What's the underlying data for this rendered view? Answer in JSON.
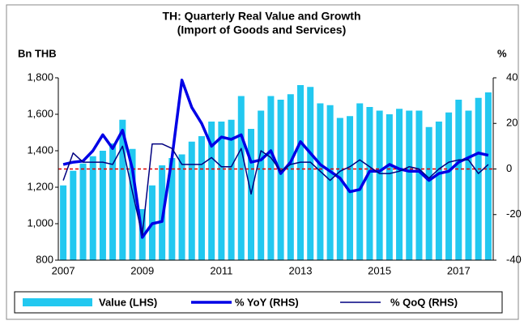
{
  "chart_data": {
    "type": "bar-line",
    "title": "TH: Quarterly Real Value and Growth",
    "subtitle": "(Import of Goods and Services)",
    "y_label": "Bn THB",
    "y2_label": "%",
    "categories": [
      "2007",
      null,
      null,
      null,
      null,
      null,
      null,
      null,
      "2009",
      null,
      null,
      null,
      null,
      null,
      null,
      null,
      "2011",
      null,
      null,
      null,
      null,
      null,
      null,
      null,
      "2013",
      null,
      null,
      null,
      null,
      null,
      null,
      null,
      "2015",
      null,
      null,
      null,
      null,
      null,
      null,
      null,
      "2017",
      null,
      null,
      null
    ],
    "ylim": [
      800,
      1800
    ],
    "yticks": [
      800,
      {
        "value": 1000,
        "label": "1,000"
      },
      {
        "value": 1200,
        "label": "1,200"
      },
      {
        "value": 1400,
        "label": "1,400"
      },
      {
        "value": 1600,
        "label": "1,600"
      },
      {
        "value": 1800,
        "label": "1,800"
      }
    ],
    "y2lim": [
      -40,
      40
    ],
    "y2ticks": [
      -40,
      -20,
      0,
      20,
      40
    ],
    "zero_line": {
      "value": 0,
      "color": "#e00000",
      "axis": "y2"
    },
    "legend": "bottom",
    "series": [
      {
        "name": "Value (LHS)",
        "kind": "bar",
        "color": "#22c8f0",
        "values": [
          1210,
          1290,
          1330,
          1370,
          1400,
          1440,
          1570,
          1410,
          1080,
          1210,
          1320,
          1360,
          1380,
          1450,
          1480,
          1560,
          1560,
          1570,
          1700,
          1520,
          1620,
          1700,
          1680,
          1710,
          1760,
          1750,
          1660,
          1650,
          1580,
          1590,
          1660,
          1640,
          1620,
          1600,
          1630,
          1620,
          1620,
          1530,
          1560,
          1610,
          1680,
          1620,
          1690,
          1720
        ]
      },
      {
        "name": "% YoY (RHS)",
        "kind": "line",
        "axis": "y2",
        "color": "#0000e6",
        "width": 3.5,
        "values": [
          2,
          3,
          3.5,
          8,
          15,
          9,
          17,
          0,
          -30,
          -24,
          -23,
          5,
          39,
          27,
          20,
          10,
          14,
          13,
          15,
          3,
          4,
          8,
          -2,
          3,
          12,
          7,
          2,
          -1,
          -4,
          -10,
          -9,
          -1,
          -1,
          2,
          0,
          -1,
          -1,
          -5,
          -2,
          -1,
          3,
          5,
          7,
          6
        ]
      },
      {
        "name": "% QoQ (RHS)",
        "kind": "line",
        "axis": "y2",
        "color": "#000080",
        "width": 1.5,
        "values": [
          -5,
          7,
          3,
          3,
          3,
          2,
          10,
          -10,
          -29,
          11,
          11,
          9,
          2,
          2,
          2,
          5,
          1,
          1,
          9,
          -11,
          8,
          5,
          -1,
          2,
          3,
          3,
          -1,
          -5,
          -1,
          1,
          4,
          1,
          -2,
          -2,
          -1,
          1,
          0,
          -4,
          0,
          3,
          4,
          4,
          -2,
          2
        ]
      }
    ]
  }
}
